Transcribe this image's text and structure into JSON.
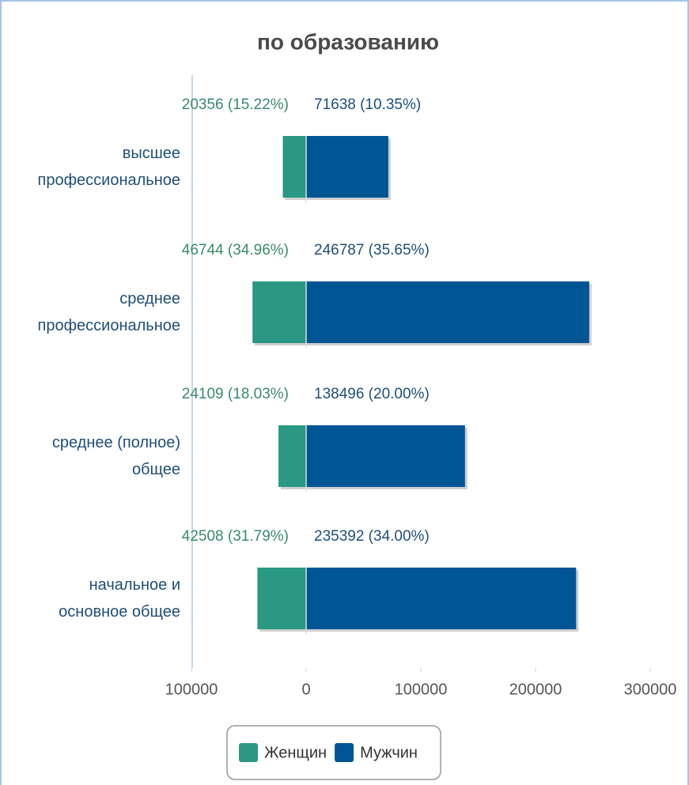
{
  "chart_data": {
    "type": "butterfly",
    "title": "по образованию",
    "categories": [
      "высшее профессиональное",
      "среднее профессиональное",
      "среднее (полное) общее",
      "начальное и основное общее"
    ],
    "series": [
      {
        "name": "Женщин",
        "color": "#2a9882",
        "values": [
          20356,
          46744,
          24109,
          42508
        ],
        "value_labels": [
          "20356 (15.22%)",
          "46744 (34.96%)",
          "24109 (18.03%)",
          "42508 (31.79%)"
        ]
      },
      {
        "name": "Мужчин",
        "color": "#005595",
        "values": [
          71638,
          246787,
          138496,
          235392
        ],
        "value_labels": [
          "71638 (10.35%)",
          "246787 (35.65%)",
          "138496 (20.00%)",
          "235392 (34.00%)"
        ]
      }
    ],
    "xlim": [
      -150000,
      330000
    ],
    "xticks": [
      {
        "value": -100000,
        "label": "100000"
      },
      0,
      100000,
      200000,
      300000
    ],
    "legend": "bottom"
  }
}
